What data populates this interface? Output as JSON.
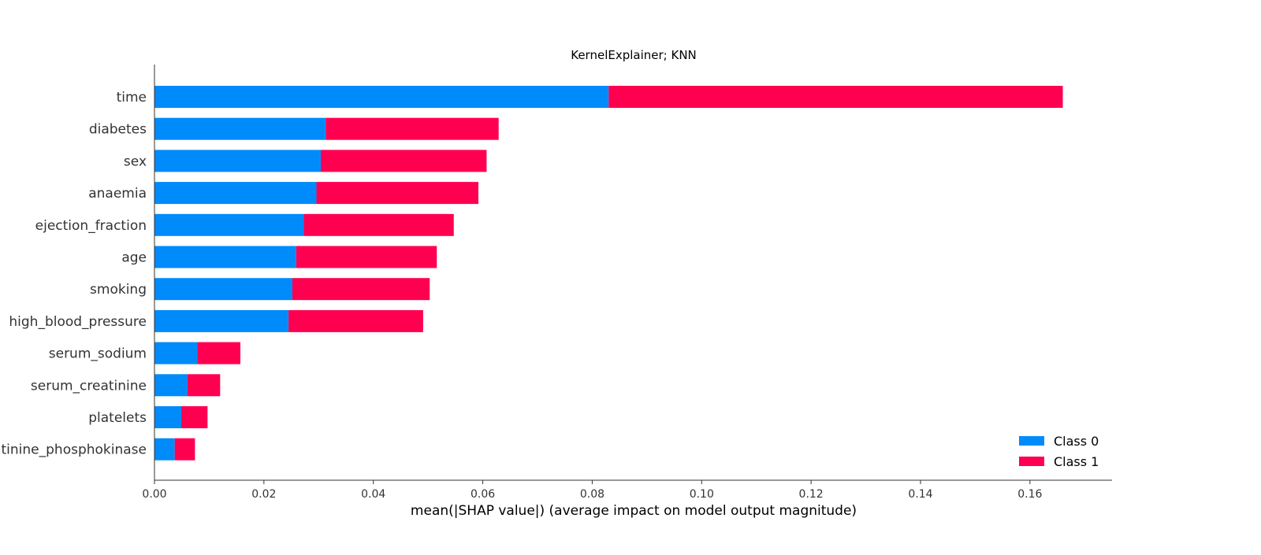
{
  "chart_data": {
    "type": "bar",
    "orientation": "horizontal",
    "stacked": true,
    "title": "KernelExplainer; KNN",
    "xlabel": "mean(|SHAP value|) (average impact on model output magnitude)",
    "ylabel": "",
    "xlim": [
      0,
      0.175
    ],
    "xticks": [
      0.0,
      0.02,
      0.04,
      0.06,
      0.08,
      0.1,
      0.12,
      0.14,
      0.16
    ],
    "xtick_labels": [
      "0.00",
      "0.02",
      "0.04",
      "0.06",
      "0.08",
      "0.10",
      "0.12",
      "0.14",
      "0.16"
    ],
    "grid": false,
    "legend_position": "bottom-right",
    "categories": [
      "time",
      "diabetes",
      "sex",
      "anaemia",
      "ejection_fraction",
      "age",
      "smoking",
      "high_blood_pressure",
      "serum_sodium",
      "serum_creatinine",
      "platelets",
      "creatinine_phosphokinase"
    ],
    "series": [
      {
        "name": "Class 0",
        "color": "#008bfb",
        "values": [
          0.083,
          0.0313,
          0.0304,
          0.0296,
          0.0273,
          0.0259,
          0.0252,
          0.0245,
          0.0078,
          0.006,
          0.0049,
          0.0037
        ]
      },
      {
        "name": "Class 1",
        "color": "#ff0051",
        "values": [
          0.083,
          0.0316,
          0.0303,
          0.0296,
          0.0274,
          0.0257,
          0.0251,
          0.0246,
          0.0079,
          0.006,
          0.0048,
          0.0037
        ]
      }
    ]
  }
}
